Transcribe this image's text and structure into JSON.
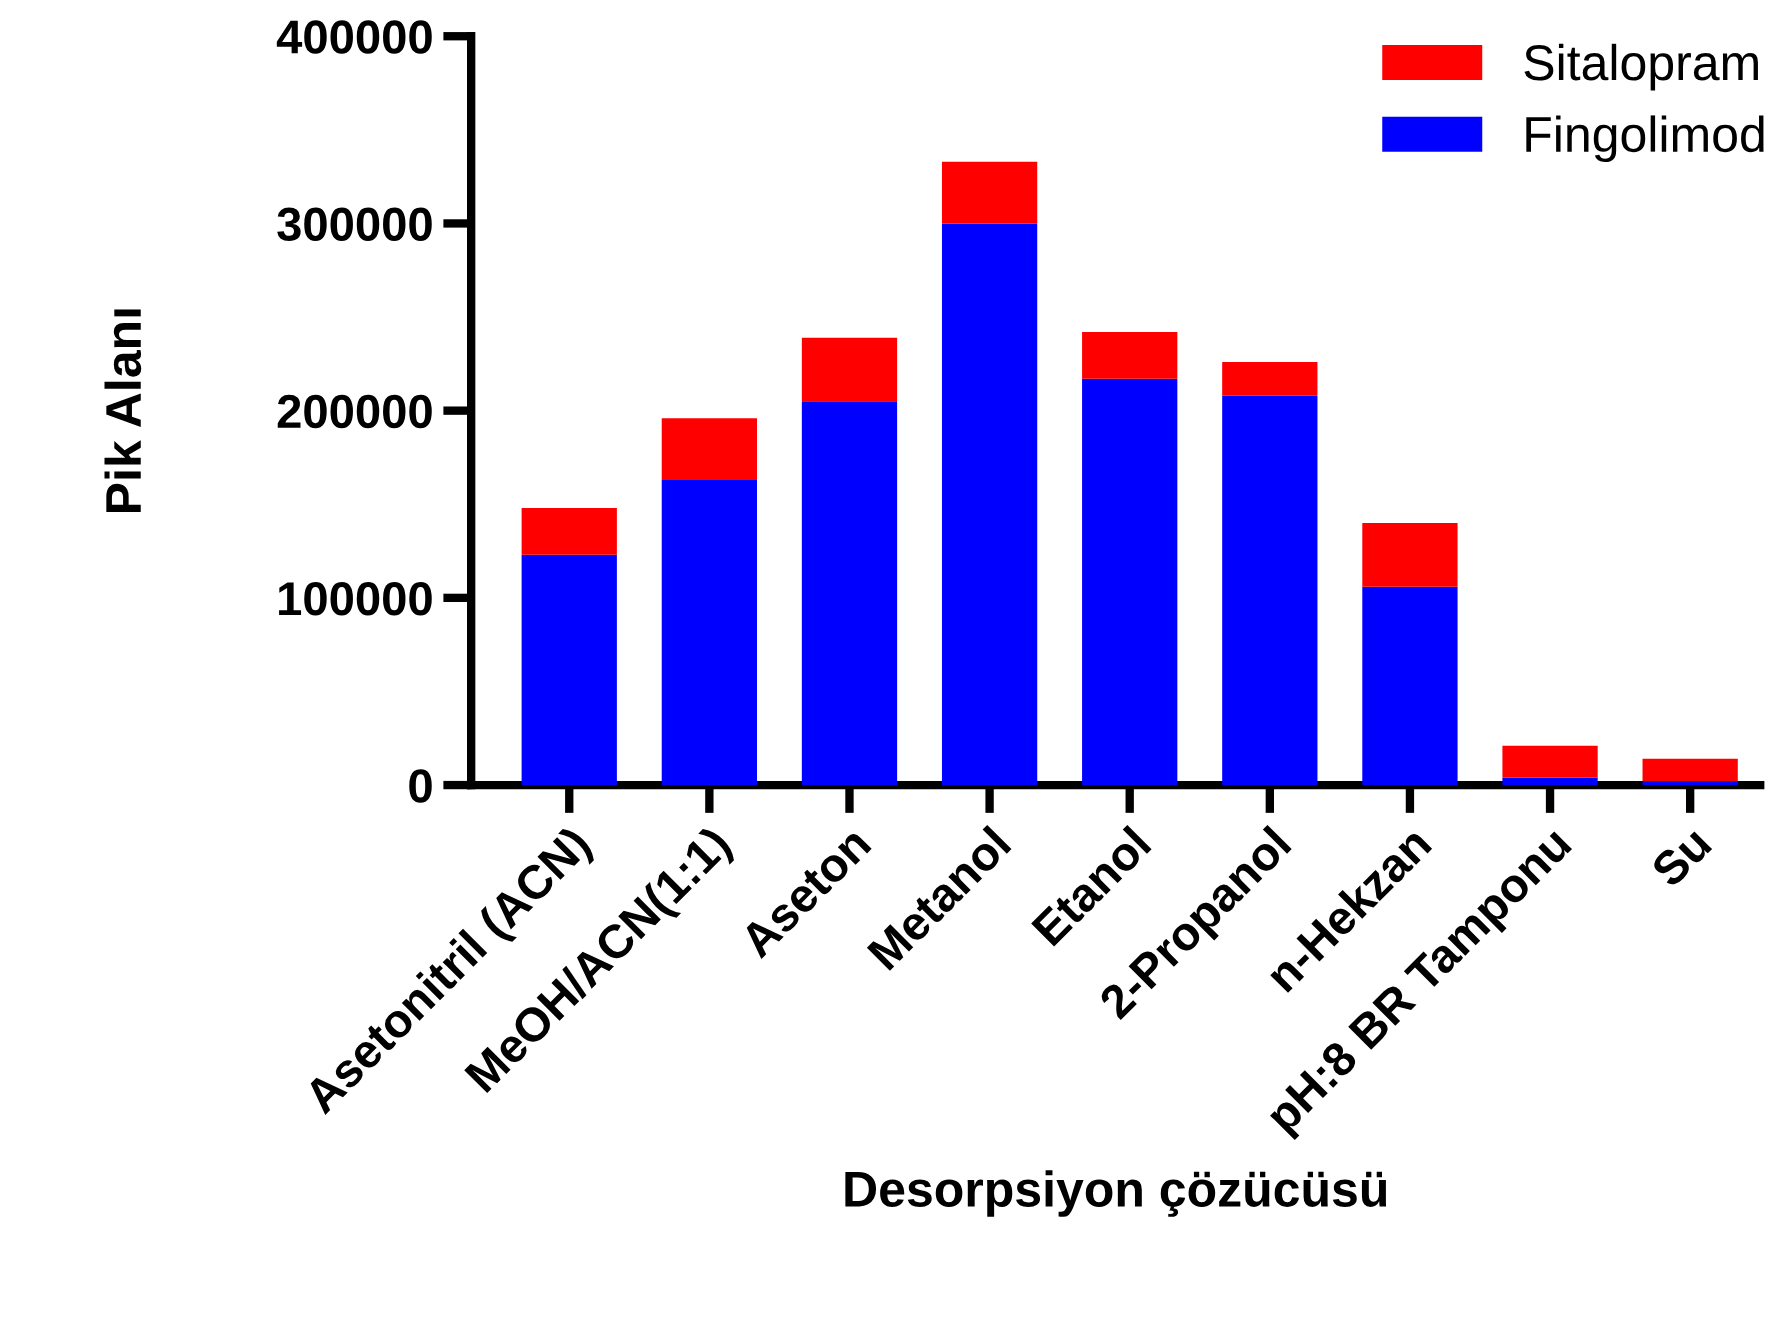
{
  "chart_data": {
    "type": "bar",
    "stacked": true,
    "xlabel": "Desorpsiyon çözücüsü",
    "ylabel": "Pik Alanı",
    "categories": [
      "Asetonitril (ACN)",
      "MeOH/ACN(1:1)",
      "Aseton",
      "Metanol",
      "Etanol",
      "2-Propanol",
      "n-Hekzan",
      "pH:8 BR Tamponu",
      "Su"
    ],
    "series": [
      {
        "name": "Fingolimod",
        "color": "#0000ff",
        "values": [
          123000,
          163000,
          205000,
          300000,
          217000,
          208000,
          106000,
          4000,
          2000
        ]
      },
      {
        "name": "Sitalopram",
        "color": "#ff0000",
        "values": [
          25000,
          33000,
          34000,
          33000,
          25000,
          18000,
          34000,
          17000,
          12000
        ]
      }
    ],
    "ylim": [
      0,
      400000
    ],
    "yticks": [
      0,
      100000,
      200000,
      300000,
      400000
    ],
    "grid": false,
    "legend": "top right"
  }
}
